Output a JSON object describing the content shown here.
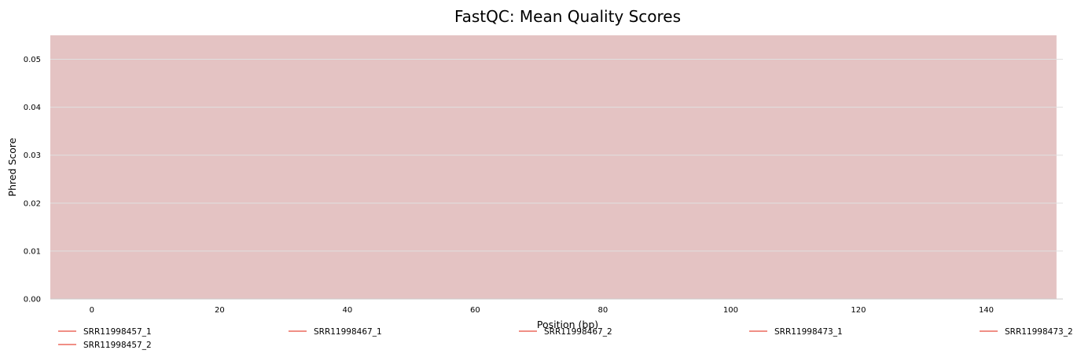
{
  "chart_data": {
    "type": "line",
    "title": "FastQC: Mean Quality Scores",
    "xlabel": "Position (bp)",
    "ylabel": "Phred Score",
    "xlim": [
      -6.5,
      152
    ],
    "ylim": [
      0,
      0.055
    ],
    "xticks": [
      0,
      20,
      40,
      60,
      80,
      100,
      120,
      140
    ],
    "yticks": [
      0.0,
      0.01,
      0.02,
      0.03,
      0.04,
      0.05
    ],
    "ytick_format": 2,
    "grid": "y",
    "background_band": {
      "x_from": -6.5,
      "x_to": 151,
      "y_from": 0,
      "y_to": 0.055,
      "color": "#e4c3c3",
      "meaning": "fail zone"
    },
    "series": [
      {
        "name": "SRR11998457_1",
        "color": "#e74c3c",
        "x": [],
        "y": []
      },
      {
        "name": "SRR11998467_1",
        "color": "#e74c3c",
        "x": [],
        "y": []
      },
      {
        "name": "SRR11998467_2",
        "color": "#e74c3c",
        "x": [],
        "y": []
      },
      {
        "name": "SRR11998473_1",
        "color": "#e74c3c",
        "x": [],
        "y": []
      },
      {
        "name": "SRR11998473_2",
        "color": "#e74c3c",
        "x": [],
        "y": []
      },
      {
        "name": "SRR11998457_2",
        "color": "#e74c3c",
        "x": [],
        "y": []
      }
    ],
    "legend": {
      "placement": "bottom",
      "columns": 5
    }
  },
  "colors": {
    "grid": "#e0e0e0",
    "text": "#000000",
    "axis": "#cccccc"
  }
}
